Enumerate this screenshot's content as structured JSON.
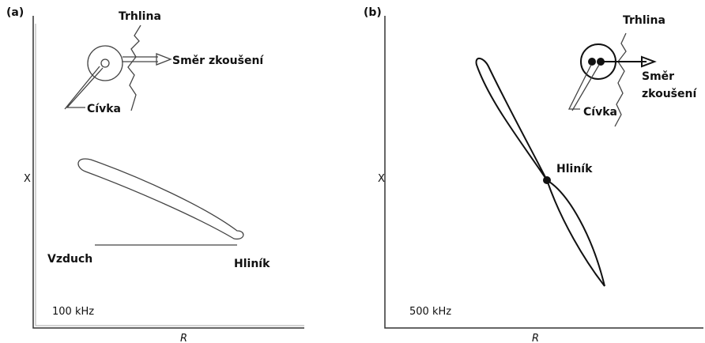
{
  "panels": [
    {
      "label": "(a)",
      "crack": "Trhlina",
      "direction": [
        "Směr zkoušení"
      ],
      "coil": "Cívka",
      "x_axis": "R",
      "y_axis": "X",
      "air": "Vzduch",
      "material": "Hliník",
      "frequency": "100 kHz"
    },
    {
      "label": "(b)",
      "crack": "Trhlina",
      "direction": [
        "Směr",
        "zkoušení"
      ],
      "coil": "Cívka",
      "x_axis": "R",
      "y_axis": "X",
      "material": "Hliník",
      "frequency": "500 kHz"
    }
  ]
}
